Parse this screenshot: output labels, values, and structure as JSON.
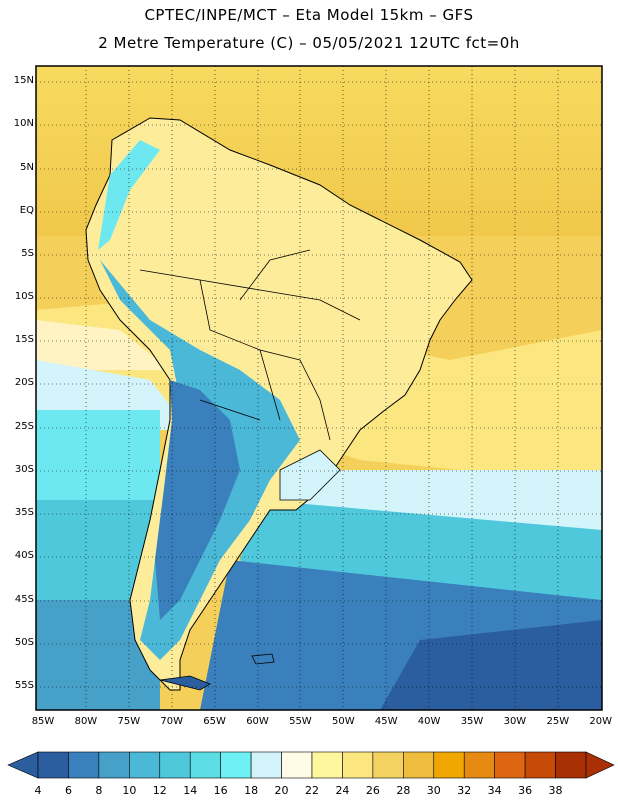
{
  "header": {
    "title_line1": "CPTEC/INPE/MCT –  Eta Model 15km – GFS",
    "title_line2": "2 Metre Temperature (C) – 05/05/2021 12UTC fct=0h"
  },
  "map": {
    "lat_labels": [
      "15N",
      "10N",
      "5N",
      "EQ",
      "5S",
      "10S",
      "15S",
      "20S",
      "25S",
      "30S",
      "35S",
      "40S",
      "45S",
      "50S",
      "55S"
    ],
    "lon_labels": [
      "85W",
      "80W",
      "75W",
      "70W",
      "65W",
      "60W",
      "55W",
      "50W",
      "45W",
      "40W",
      "35W",
      "30W",
      "25W",
      "20W"
    ]
  },
  "colorbar": {
    "labels": [
      "4",
      "6",
      "8",
      "10",
      "12",
      "14",
      "16",
      "18",
      "20",
      "22",
      "24",
      "26",
      "28",
      "30",
      "32",
      "34",
      "36",
      "38"
    ],
    "colors": [
      "#2b5e9e",
      "#3a80bc",
      "#46a0c8",
      "#4ab8d6",
      "#4fc8dc",
      "#5cdde6",
      "#6ef0f5",
      "#d2f4fa",
      "#fffbe6",
      "#fff79e",
      "#fbe680",
      "#f4d262",
      "#eebd3e",
      "#f0a700",
      "#e68a14",
      "#de6612",
      "#c84a08",
      "#a83004"
    ]
  }
}
